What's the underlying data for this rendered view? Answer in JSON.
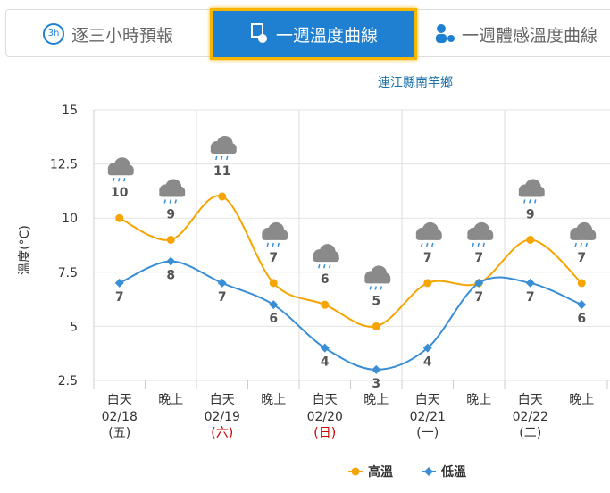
{
  "tabs": [
    {
      "icon_text": "3h",
      "label": "逐三小時預報"
    },
    {
      "label": "一週溫度曲線"
    },
    {
      "label": "一週體感溫度曲線"
    }
  ],
  "chart_data": {
    "type": "line",
    "subtitle": "連江縣南竿鄉",
    "ylabel": "溫度(°C)",
    "categories": [
      "白天",
      "晚上",
      "白天",
      "晚上",
      "白天",
      "晚上",
      "白天",
      "晚上",
      "白天",
      "晚上"
    ],
    "days": [
      {
        "date": "02/18",
        "weekday": "(五)",
        "weekday_color": "#333333"
      },
      {
        "date": "02/19",
        "weekday": "(六)",
        "weekday_color": "#cc0000"
      },
      {
        "date": "02/20",
        "weekday": "(日)",
        "weekday_color": "#cc0000"
      },
      {
        "date": "02/21",
        "weekday": "(一)",
        "weekday_color": "#333333"
      },
      {
        "date": "02/22",
        "weekday": "(二)",
        "weekday_color": "#333333"
      }
    ],
    "series": [
      {
        "name": "高溫",
        "color": "#f5a400",
        "marker": "circle",
        "values": [
          10,
          9,
          11,
          7,
          6,
          5,
          7,
          7,
          9,
          7
        ]
      },
      {
        "name": "低溫",
        "color": "#3a8ed6",
        "marker": "diamond",
        "values": [
          7,
          8,
          7,
          6,
          4,
          3,
          4,
          7,
          7,
          6
        ]
      }
    ],
    "ylim": [
      2.5,
      15
    ],
    "yticks": [
      2.5,
      5,
      7.5,
      10,
      12.5,
      15
    ],
    "grid": true
  }
}
